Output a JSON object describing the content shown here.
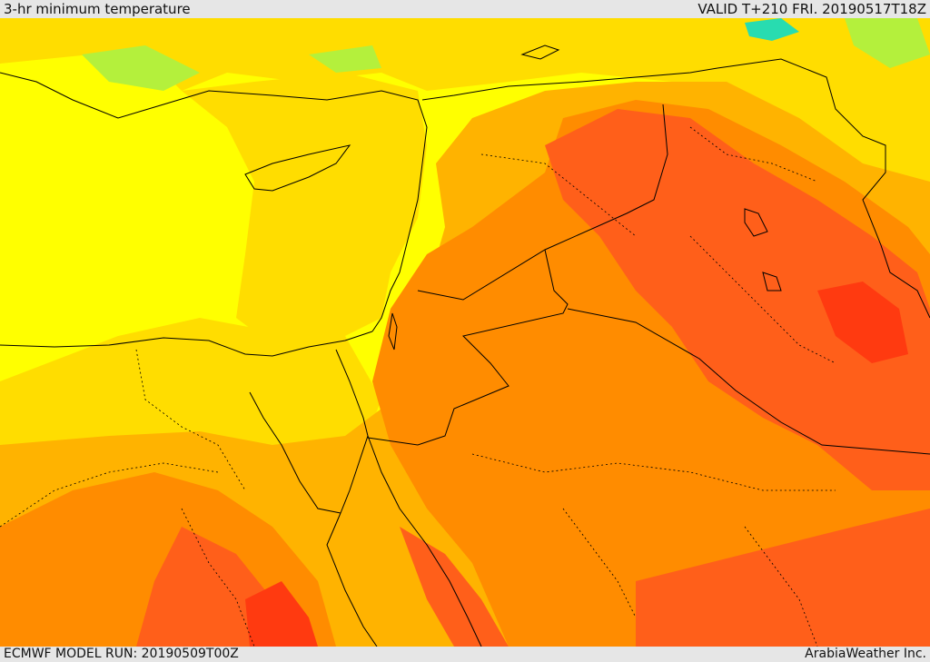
{
  "header": {
    "title": "3-hr minimum temperature",
    "valid": "VALID T+210 FRI. 20190517T18Z"
  },
  "footer": {
    "model_run": "ECMWF MODEL RUN: 20190509T00Z",
    "credit": "ArabiaWeather Inc."
  },
  "palette": {
    "sea_yellow": "#ffff00",
    "gold": "#ffdd00",
    "amber": "#ffb300",
    "orange": "#ff8c00",
    "dark_orange": "#ff5f1a",
    "red": "#ff3a10",
    "green": "#b4f03c",
    "aqua": "#28dcb0",
    "border": "#000000"
  }
}
